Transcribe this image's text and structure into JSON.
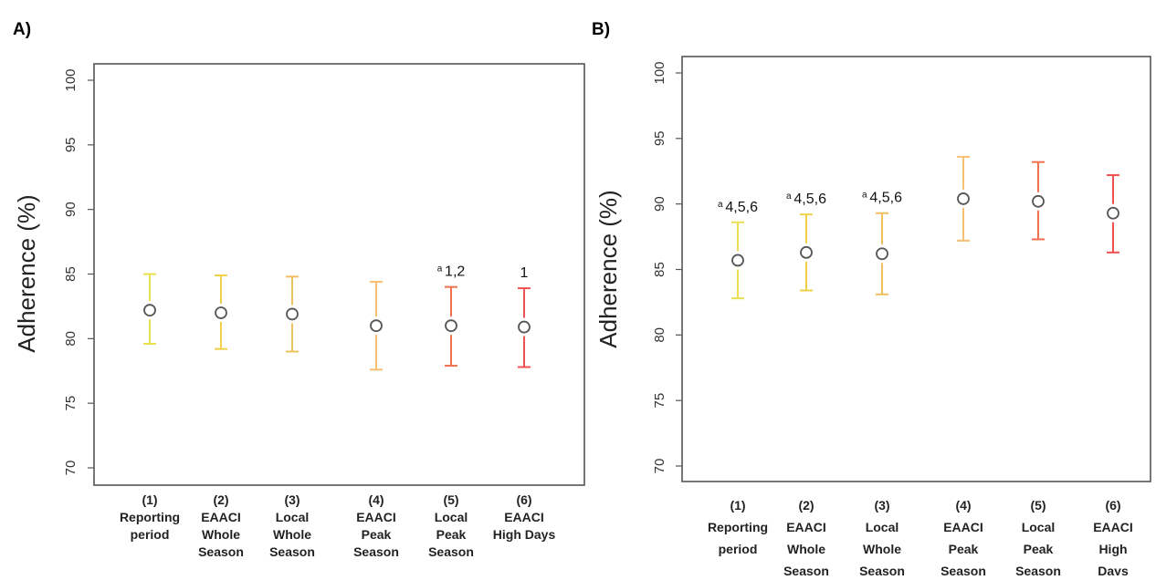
{
  "chart_data": [
    {
      "panel_label": "A)",
      "type": "scatter",
      "ylabel": "Adherence (%)",
      "ylim": [
        70,
        100
      ],
      "yticks": [
        "70",
        "75",
        "80",
        "85",
        "90",
        "95",
        "100"
      ],
      "categories": [
        [
          "(1)",
          "Reporting",
          "period"
        ],
        [
          "(2)",
          "EAACI",
          "Whole",
          "Season"
        ],
        [
          "(3)",
          "Local",
          "Whole",
          "Season"
        ],
        [
          "(4)",
          "EAACI",
          "Peak",
          "Season"
        ],
        [
          "(5)",
          "Local",
          "Peak",
          "Season"
        ],
        [
          "(6)",
          "EAACI",
          "High Days"
        ]
      ],
      "values": [
        82.2,
        82.0,
        81.9,
        81.0,
        81.0,
        80.9
      ],
      "ci_upper": [
        85.0,
        84.9,
        84.8,
        84.4,
        84.0,
        83.9
      ],
      "ci_lower": [
        79.6,
        79.2,
        79.0,
        77.6,
        77.9,
        77.8
      ],
      "colors": [
        "#e8e050",
        "#f0d048",
        "#f0c060",
        "#f8c070",
        "#f07050",
        "#f05050"
      ],
      "annotations": [
        {
          "index": 4,
          "superscript": "a",
          "text": "1,2"
        },
        {
          "index": 5,
          "superscript": "",
          "text": "1"
        }
      ]
    },
    {
      "panel_label": "B)",
      "type": "scatter",
      "ylabel": "Adherence (%)",
      "ylim": [
        70,
        100
      ],
      "yticks": [
        "70",
        "75",
        "80",
        "85",
        "90",
        "95",
        "100"
      ],
      "categories": [
        [
          "(1)",
          "Reporting",
          "period"
        ],
        [
          "(2)",
          "EAACI",
          "Whole",
          "Season"
        ],
        [
          "(3)",
          "Local",
          "Whole",
          "Season"
        ],
        [
          "(4)",
          "EAACI",
          "Peak",
          "Season"
        ],
        [
          "(5)",
          "Local",
          "Peak",
          "Season"
        ],
        [
          "(6)",
          "EAACI",
          "High",
          "Days"
        ]
      ],
      "values": [
        85.7,
        86.3,
        86.2,
        90.4,
        90.2,
        89.3
      ],
      "ci_upper": [
        88.6,
        89.2,
        89.3,
        93.6,
        93.2,
        92.2
      ],
      "ci_lower": [
        82.8,
        83.4,
        83.1,
        87.2,
        87.3,
        86.3
      ],
      "colors": [
        "#e8e050",
        "#f0d048",
        "#f0c060",
        "#f8c070",
        "#f07050",
        "#f05050"
      ],
      "annotations": [
        {
          "index": 0,
          "superscript": "a",
          "text": "4,5,6"
        },
        {
          "index": 1,
          "superscript": "a",
          "text": "4,5,6"
        },
        {
          "index": 2,
          "superscript": "a",
          "text": "4,5,6"
        }
      ]
    }
  ]
}
